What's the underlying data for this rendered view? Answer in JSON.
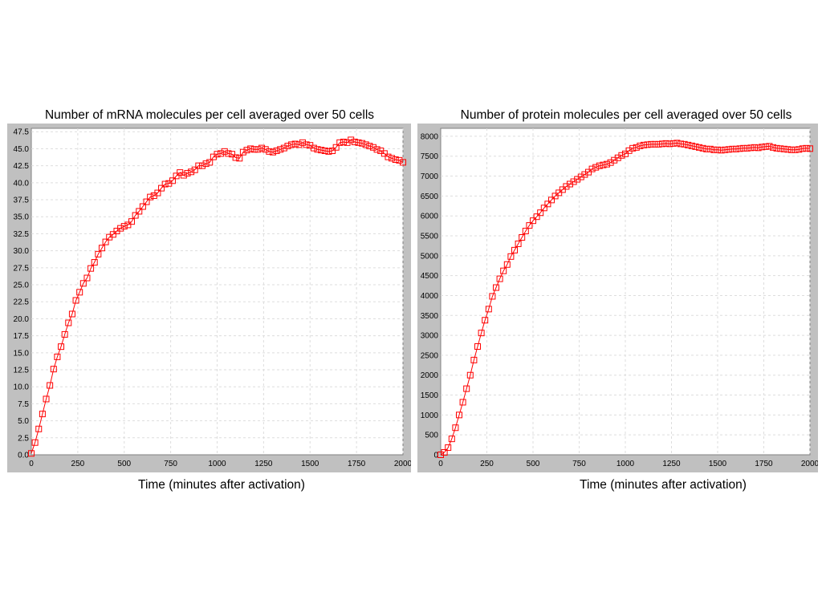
{
  "chart_data": [
    {
      "type": "line",
      "title": "Number of mRNA molecules per cell averaged over 50 cells",
      "xlabel": "Time (minutes after activation)",
      "ylabel": "",
      "xlim": [
        0,
        2000
      ],
      "ylim": [
        0,
        48
      ],
      "grid": true,
      "legend": "none",
      "color": "#ff0000",
      "marker": "square",
      "x_ticks": [
        "0",
        "250",
        "500",
        "750",
        "1000",
        "1250",
        "1500",
        "1750",
        "2000"
      ],
      "y_ticks": [
        "0.0",
        "2.5",
        "5.0",
        "7.5",
        "10.0",
        "12.5",
        "15.0",
        "17.5",
        "20.0",
        "22.5",
        "25.0",
        "27.5",
        "30.0",
        "32.5",
        "35.0",
        "37.5",
        "40.0",
        "42.5",
        "45.0",
        "47.5"
      ],
      "series": [
        {
          "x": [
            0,
            20,
            40,
            60,
            80,
            100,
            120,
            140,
            160,
            180,
            200,
            220,
            240,
            260,
            280,
            300,
            320,
            340,
            360,
            380,
            400,
            420,
            440,
            460,
            480,
            500,
            520,
            540,
            560,
            580,
            600,
            620,
            640,
            660,
            680,
            700,
            720,
            740,
            760,
            780,
            800,
            820,
            840,
            860,
            880,
            900,
            920,
            940,
            960,
            980,
            1000,
            1020,
            1040,
            1060,
            1080,
            1100,
            1120,
            1140,
            1160,
            1180,
            1200,
            1220,
            1240,
            1260,
            1280,
            1300,
            1320,
            1340,
            1360,
            1380,
            1400,
            1420,
            1440,
            1460,
            1480,
            1500,
            1520,
            1540,
            1560,
            1580,
            1600,
            1620,
            1640,
            1660,
            1680,
            1700,
            1720,
            1740,
            1760,
            1780,
            1800,
            1820,
            1840,
            1860,
            1880,
            1900,
            1920,
            1940,
            1960,
            1980,
            2000
          ],
          "y": [
            0.2,
            1.8,
            3.8,
            6.0,
            8.2,
            10.2,
            12.6,
            14.4,
            15.9,
            17.7,
            19.4,
            20.7,
            22.7,
            23.9,
            25.2,
            26.0,
            27.4,
            28.3,
            29.5,
            30.4,
            31.3,
            32.0,
            32.4,
            32.9,
            33.3,
            33.6,
            33.8,
            34.3,
            35.2,
            35.8,
            36.5,
            37.2,
            37.9,
            38.1,
            38.5,
            39.2,
            39.8,
            39.9,
            40.3,
            41.0,
            41.5,
            41.1,
            41.4,
            41.6,
            41.9,
            42.5,
            42.5,
            42.8,
            43.0,
            43.8,
            44.2,
            44.3,
            44.6,
            44.3,
            44.2,
            43.7,
            43.6,
            44.5,
            44.8,
            45.0,
            44.9,
            44.9,
            45.1,
            44.9,
            44.6,
            44.5,
            44.7,
            44.9,
            45.1,
            45.4,
            45.6,
            45.7,
            45.6,
            45.9,
            45.6,
            45.5,
            45.1,
            44.9,
            44.8,
            44.7,
            44.6,
            44.7,
            45.2,
            45.9,
            46.0,
            45.9,
            46.3,
            46.0,
            45.9,
            45.8,
            45.6,
            45.4,
            45.2,
            44.9,
            44.7,
            44.3,
            43.8,
            43.6,
            43.4,
            43.3,
            43.0
          ]
        }
      ]
    },
    {
      "type": "line",
      "title": "Number of protein molecules per cell averaged over 50 cells",
      "xlabel": "Time (minutes after activation)",
      "ylabel": "",
      "xlim": [
        0,
        2000
      ],
      "ylim": [
        0,
        8200
      ],
      "grid": true,
      "legend": "none",
      "color": "#ff0000",
      "marker": "square",
      "x_ticks": [
        "0",
        "250",
        "500",
        "750",
        "1000",
        "1250",
        "1500",
        "1750",
        "2000"
      ],
      "y_ticks": [
        "0",
        "500",
        "1000",
        "1500",
        "2000",
        "2500",
        "3000",
        "3500",
        "4000",
        "4500",
        "5000",
        "5500",
        "6000",
        "6500",
        "7000",
        "7500",
        "8000"
      ],
      "series": [
        {
          "x": [
            0,
            20,
            40,
            60,
            80,
            100,
            120,
            140,
            160,
            180,
            200,
            220,
            240,
            260,
            280,
            300,
            320,
            340,
            360,
            380,
            400,
            420,
            440,
            460,
            480,
            500,
            520,
            540,
            560,
            580,
            600,
            620,
            640,
            660,
            680,
            700,
            720,
            740,
            760,
            780,
            800,
            820,
            840,
            860,
            880,
            900,
            920,
            940,
            960,
            980,
            1000,
            1020,
            1040,
            1060,
            1080,
            1100,
            1120,
            1140,
            1160,
            1180,
            1200,
            1220,
            1240,
            1260,
            1280,
            1300,
            1320,
            1340,
            1360,
            1380,
            1400,
            1420,
            1440,
            1460,
            1480,
            1500,
            1520,
            1540,
            1560,
            1580,
            1600,
            1620,
            1640,
            1660,
            1680,
            1700,
            1720,
            1740,
            1760,
            1780,
            1800,
            1820,
            1840,
            1860,
            1880,
            1900,
            1920,
            1940,
            1960,
            1980,
            2000
          ],
          "y": [
            0,
            60,
            180,
            400,
            680,
            1000,
            1320,
            1660,
            2000,
            2380,
            2720,
            3060,
            3380,
            3660,
            3980,
            4200,
            4420,
            4620,
            4780,
            4980,
            5140,
            5300,
            5460,
            5620,
            5760,
            5880,
            5980,
            6080,
            6200,
            6300,
            6400,
            6500,
            6580,
            6660,
            6740,
            6800,
            6860,
            6920,
            6980,
            7040,
            7100,
            7180,
            7220,
            7260,
            7280,
            7300,
            7340,
            7400,
            7460,
            7520,
            7560,
            7640,
            7700,
            7720,
            7760,
            7780,
            7790,
            7800,
            7800,
            7800,
            7810,
            7820,
            7810,
            7820,
            7830,
            7810,
            7800,
            7780,
            7760,
            7740,
            7720,
            7700,
            7680,
            7680,
            7660,
            7660,
            7650,
            7660,
            7670,
            7680,
            7680,
            7690,
            7700,
            7700,
            7710,
            7720,
            7710,
            7730,
            7740,
            7750,
            7720,
            7700,
            7690,
            7680,
            7670,
            7660,
            7660,
            7670,
            7690,
            7700,
            7690
          ]
        }
      ]
    }
  ]
}
